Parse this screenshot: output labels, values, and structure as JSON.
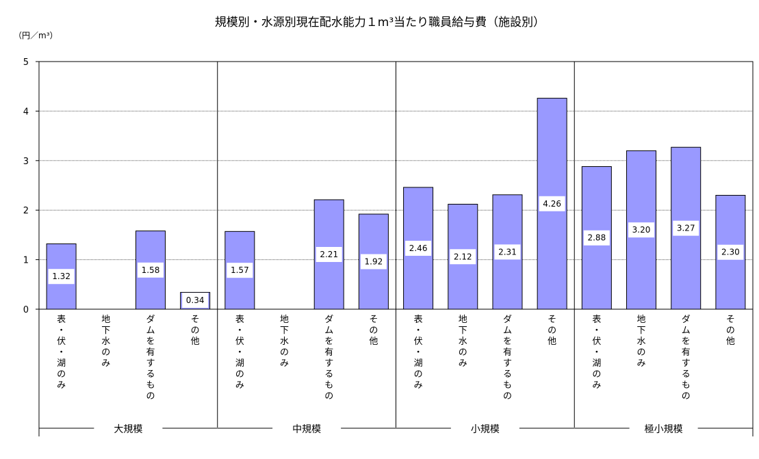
{
  "chart_data": {
    "type": "bar",
    "title": "規模別・水源別現在配水能力１m³当たり職員給与費（施設別）",
    "ylabel": "（円／m³）",
    "ylim": [
      0,
      5
    ],
    "yticks": [
      0,
      1,
      2,
      3,
      4,
      5
    ],
    "grid": true,
    "bar_color": "#9999ff",
    "groups": [
      {
        "name": "大規模",
        "categories": [
          "表・伏・湖のみ",
          "地下水のみ",
          "ダムを有するもの",
          "その他"
        ],
        "values": [
          1.32,
          null,
          1.58,
          0.34
        ],
        "labels": [
          "1.32",
          "",
          "1.58",
          "0.34"
        ]
      },
      {
        "name": "中規模",
        "categories": [
          "表・伏・湖のみ",
          "地下水のみ",
          "ダムを有するもの",
          "その他"
        ],
        "values": [
          1.57,
          null,
          2.21,
          1.92
        ],
        "labels": [
          "1.57",
          "",
          "2.21",
          "1.92"
        ]
      },
      {
        "name": "小規模",
        "categories": [
          "表・伏・湖のみ",
          "地下水のみ",
          "ダムを有するもの",
          "その他"
        ],
        "values": [
          2.46,
          2.12,
          2.31,
          4.26
        ],
        "labels": [
          "2.46",
          "2.12",
          "2.31",
          "4.26"
        ]
      },
      {
        "name": "極小規模",
        "categories": [
          "表・伏・湖のみ",
          "地下水のみ",
          "ダムを有するもの",
          "その他"
        ],
        "values": [
          2.88,
          3.2,
          3.27,
          2.3
        ],
        "labels": [
          "2.88",
          "3.20",
          "3.27",
          "2.30"
        ]
      }
    ]
  }
}
